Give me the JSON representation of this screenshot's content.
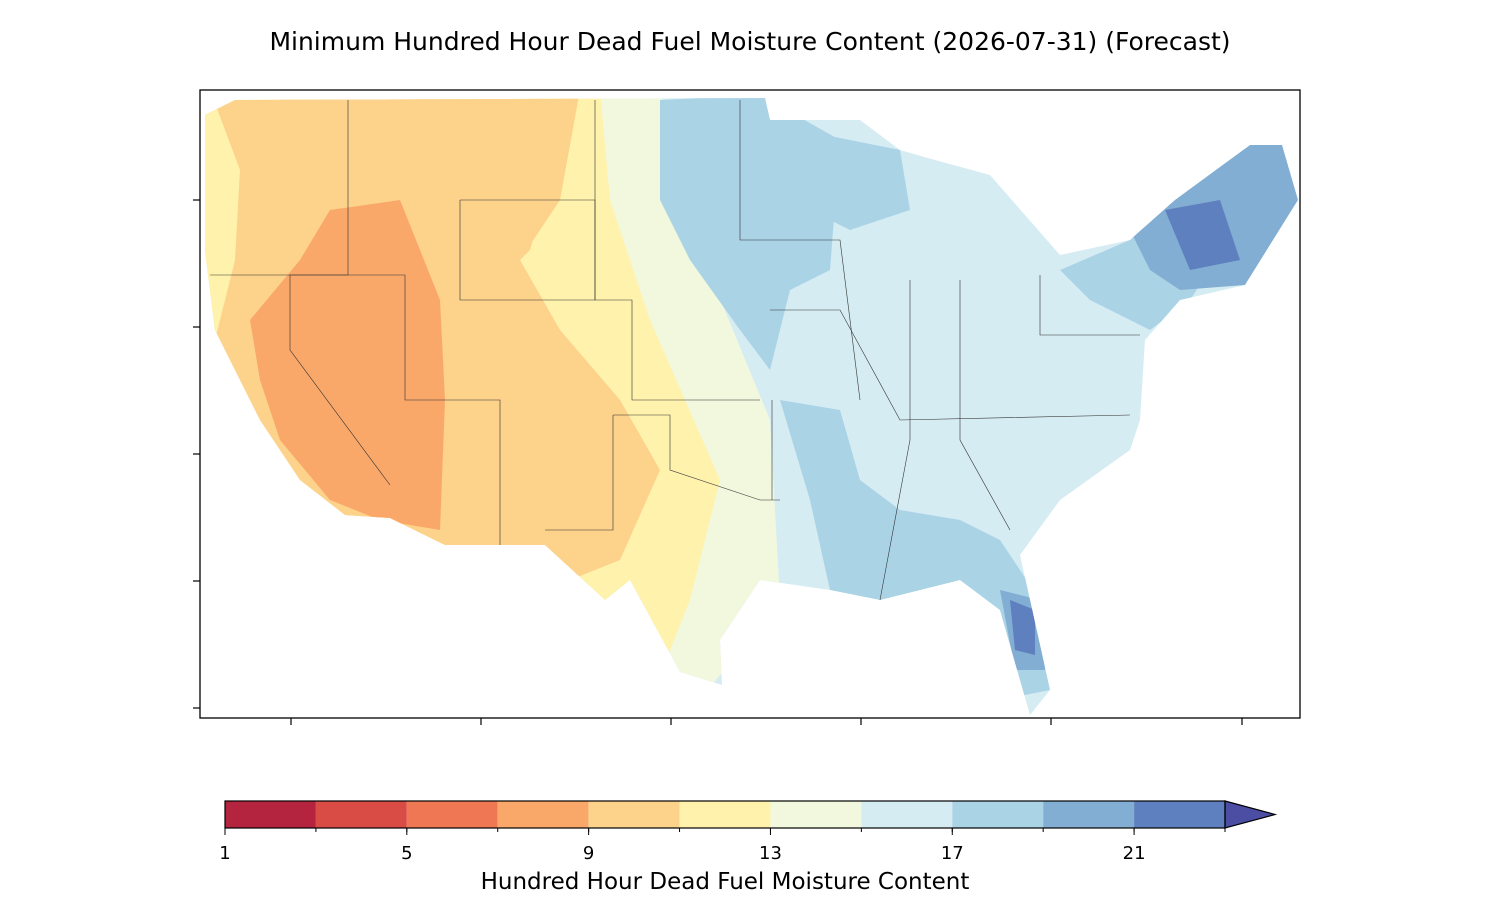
{
  "map": {
    "title": "Minimum Hundred Hour Dead Fuel Moisture Content (2026-07-31) (Forecast)",
    "colorbar": {
      "label": "Hundred Hour Dead Fuel Moisture Content",
      "levels": [
        1,
        3,
        5,
        7,
        9,
        11,
        13,
        15,
        17,
        19,
        21,
        23
      ],
      "colors": [
        "#b5243f",
        "#d94b45",
        "#ef7753",
        "#f9a86a",
        "#fdd28b",
        "#fef2ad",
        "#f1f8de",
        "#d6ecf3",
        "#abd3e6",
        "#82aed3",
        "#5f80be"
      ],
      "extend_color": "#4b4ea3",
      "ticks": [
        1,
        5,
        9,
        13,
        17,
        21
      ]
    }
  }
}
